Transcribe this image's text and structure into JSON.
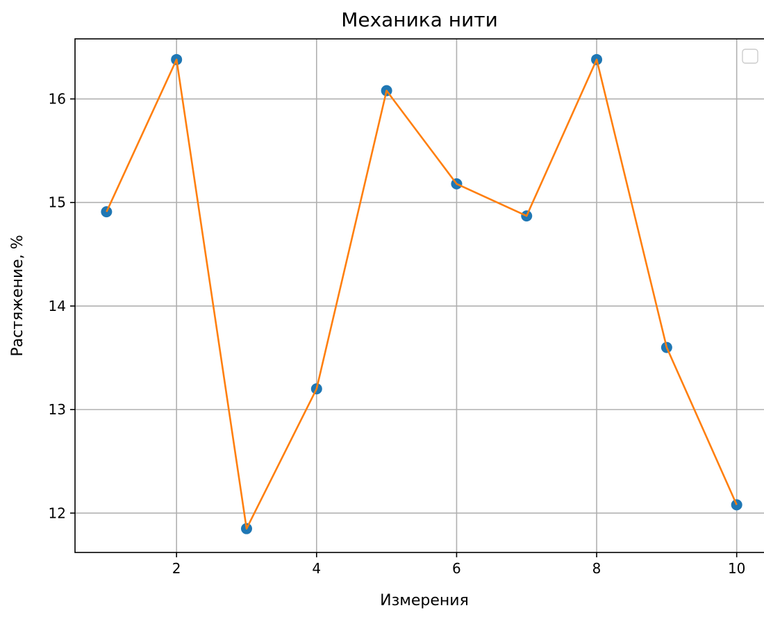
{
  "chart_data": {
    "type": "line",
    "title": "Механика нити",
    "xlabel": "Измерения",
    "ylabel": "Растяжение, %",
    "x": [
      1,
      2,
      3,
      4,
      5,
      6,
      7,
      8,
      9,
      10
    ],
    "series": [
      {
        "values": [
          14.91,
          16.38,
          11.85,
          13.2,
          16.08,
          15.18,
          14.87,
          16.38,
          13.6,
          12.08
        ],
        "marker_color": "#1f77b4",
        "line_color": "#ff7f0e"
      }
    ],
    "xlim": [
      0.55,
      10.4
    ],
    "ylim": [
      11.62,
      16.58
    ],
    "xticks": [
      2,
      4,
      6,
      8,
      10
    ],
    "yticks": [
      12,
      13,
      14,
      15,
      16
    ],
    "grid": true,
    "legend": {
      "placement": "top-right",
      "entries": []
    }
  }
}
